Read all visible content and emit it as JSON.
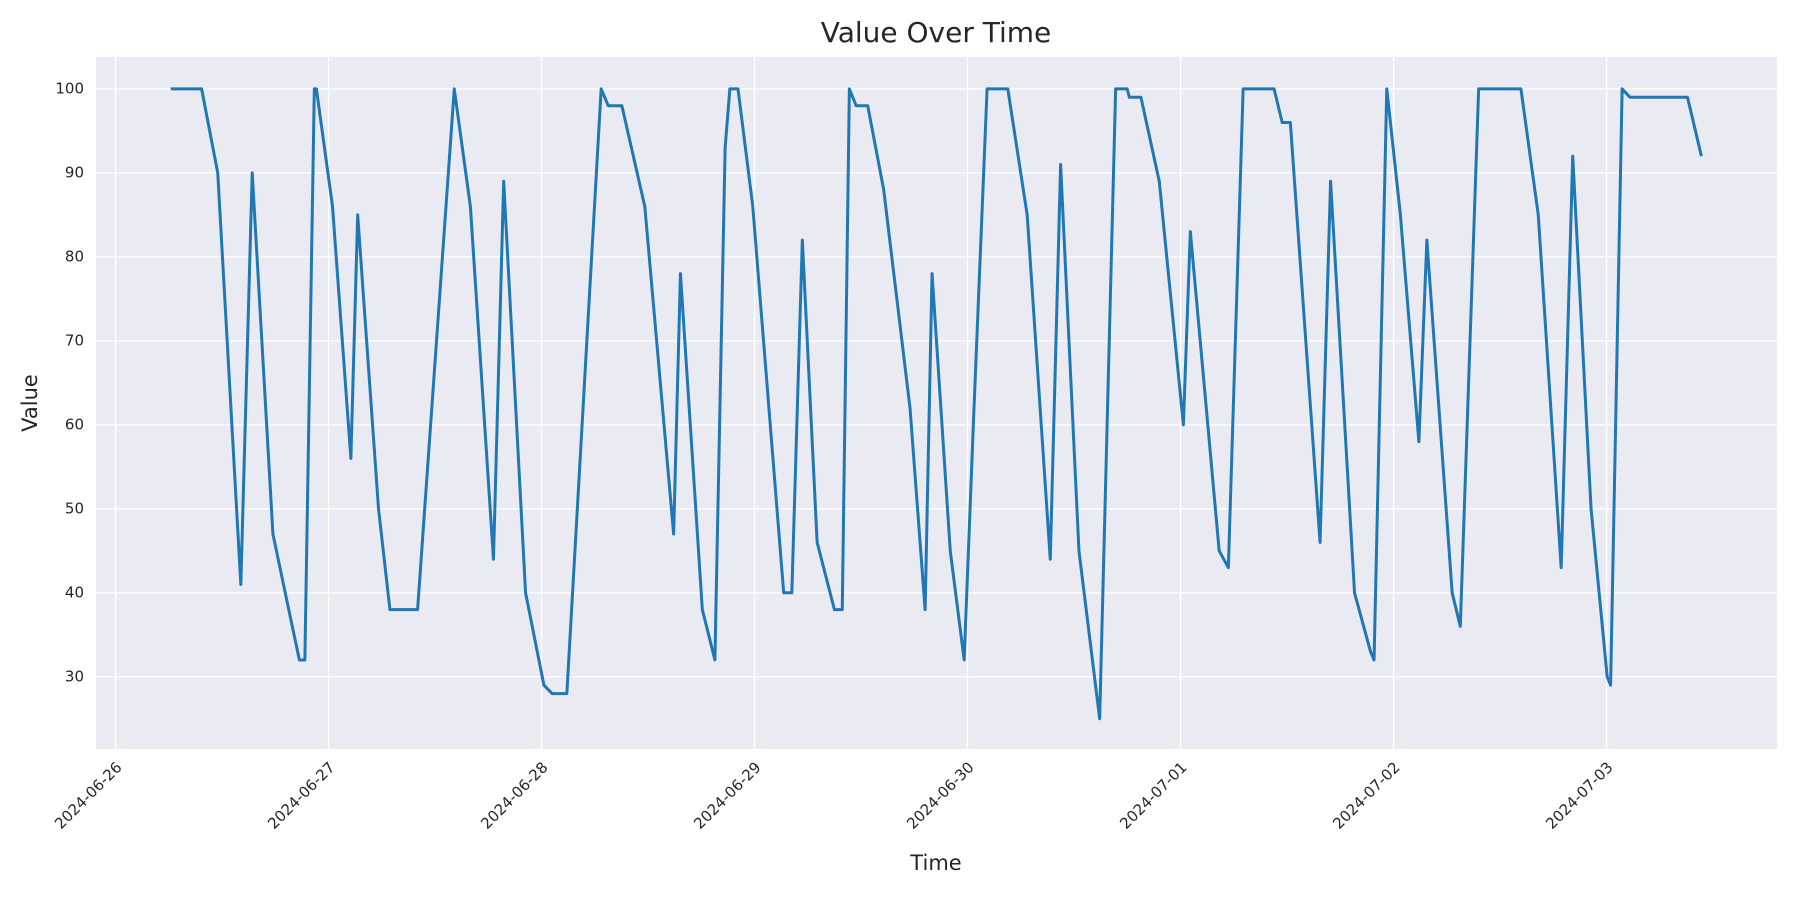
{
  "chart_data": {
    "type": "line",
    "title": "Value Over Time",
    "x_label": "Time",
    "y_label": "Value",
    "x": [
      "2024-06-26 06:13",
      "2024-06-26 09:42",
      "2024-06-26 11:31",
      "2024-06-26 14:07",
      "2024-06-26 15:24",
      "2024-06-26 17:44",
      "2024-06-26 19:55",
      "2024-06-26 20:43",
      "2024-06-26 21:20",
      "2024-06-26 22:24",
      "2024-06-26 22:38",
      "2024-06-27 00:27",
      "2024-06-27 02:31",
      "2024-06-27 03:17",
      "2024-06-27 05:38",
      "2024-06-27 06:55",
      "2024-06-27 10:02",
      "2024-06-27 14:10",
      "2024-06-27 15:59",
      "2024-06-27 18:35",
      "2024-06-27 19:44",
      "2024-06-27 22:12",
      "2024-06-28 00:16",
      "2024-06-28 01:11",
      "2024-06-28 02:51",
      "2024-06-28 06:43",
      "2024-06-28 07:31",
      "2024-06-28 09:03",
      "2024-06-28 11:38",
      "2024-06-28 14:53",
      "2024-06-28 15:39",
      "2024-06-28 18:07",
      "2024-06-28 19:32",
      "2024-06-28 20:41",
      "2024-06-28 21:13",
      "2024-06-28 22:08",
      "2024-06-28 23:48",
      "2024-06-29 03:17",
      "2024-06-29 04:12",
      "2024-06-29 05:23",
      "2024-06-29 07:03",
      "2024-06-29 09:00",
      "2024-06-29 09:53",
      "2024-06-29 10:41",
      "2024-06-29 11:27",
      "2024-06-29 12:45",
      "2024-06-29 14:33",
      "2024-06-29 17:31",
      "2024-06-29 19:13",
      "2024-06-29 20:00",
      "2024-06-29 22:03",
      "2024-06-29 23:37",
      "2024-06-30 00:39",
      "2024-06-30 02:12",
      "2024-06-30 04:32",
      "2024-06-30 06:43",
      "2024-06-30 09:19",
      "2024-06-30 10:29",
      "2024-06-30 12:33",
      "2024-06-30 14:53",
      "2024-06-30 16:41",
      "2024-06-30 17:59",
      "2024-06-30 18:14",
      "2024-06-30 19:32",
      "2024-06-30 21:36",
      "2024-07-01 00:19",
      "2024-07-01 01:06",
      "2024-07-01 04:21",
      "2024-07-01 05:23",
      "2024-07-01 07:03",
      "2024-07-01 10:32",
      "2024-07-01 11:27",
      "2024-07-01 12:22",
      "2024-07-01 15:43",
      "2024-07-01 16:54",
      "2024-07-01 19:36",
      "2024-07-01 21:24",
      "2024-07-01 21:48",
      "2024-07-01 23:14",
      "2024-07-02 00:46",
      "2024-07-02 02:51",
      "2024-07-02 03:45",
      "2024-07-02 06:36",
      "2024-07-02 07:31",
      "2024-07-02 09:35",
      "2024-07-02 14:21",
      "2024-07-02 16:18",
      "2024-07-02 18:53",
      "2024-07-02 20:11",
      "2024-07-02 22:15",
      "2024-07-03 00:04",
      "2024-07-03 00:27",
      "2024-07-03 01:45",
      "2024-07-03 02:38",
      "2024-07-03 09:07",
      "2024-07-03 10:41"
    ],
    "values": [
      100,
      100,
      90,
      41,
      90,
      47,
      36,
      32,
      32,
      100,
      100,
      86,
      56,
      85,
      50,
      38,
      38,
      100,
      86,
      44,
      89,
      40,
      29,
      28,
      28,
      100,
      98,
      98,
      86,
      47,
      78,
      38,
      32,
      93,
      100,
      100,
      86,
      40,
      40,
      82,
      46,
      38,
      38,
      100,
      98,
      98,
      88,
      62,
      38,
      78,
      45,
      32,
      60,
      100,
      100,
      85,
      44,
      91,
      45,
      25,
      100,
      100,
      99,
      99,
      89,
      60,
      83,
      45,
      43,
      100,
      100,
      96,
      96,
      46,
      89,
      40,
      33,
      32,
      100,
      85,
      58,
      82,
      40,
      36,
      100,
      100,
      85,
      43,
      92,
      50,
      30,
      29,
      100,
      99,
      99,
      92
    ],
    "color": "#1f77b4",
    "xlim": [
      "2024-06-25 21:48",
      "2024-07-03 19:12"
    ],
    "xticks": [
      "2024-06-26",
      "2024-06-27",
      "2024-06-28",
      "2024-06-29",
      "2024-06-30",
      "2024-07-01",
      "2024-07-02",
      "2024-07-03"
    ],
    "ylim": [
      21.4,
      103.8
    ],
    "yticks": [
      30,
      40,
      50,
      60,
      70,
      80,
      90,
      100
    ],
    "grid": true
  }
}
